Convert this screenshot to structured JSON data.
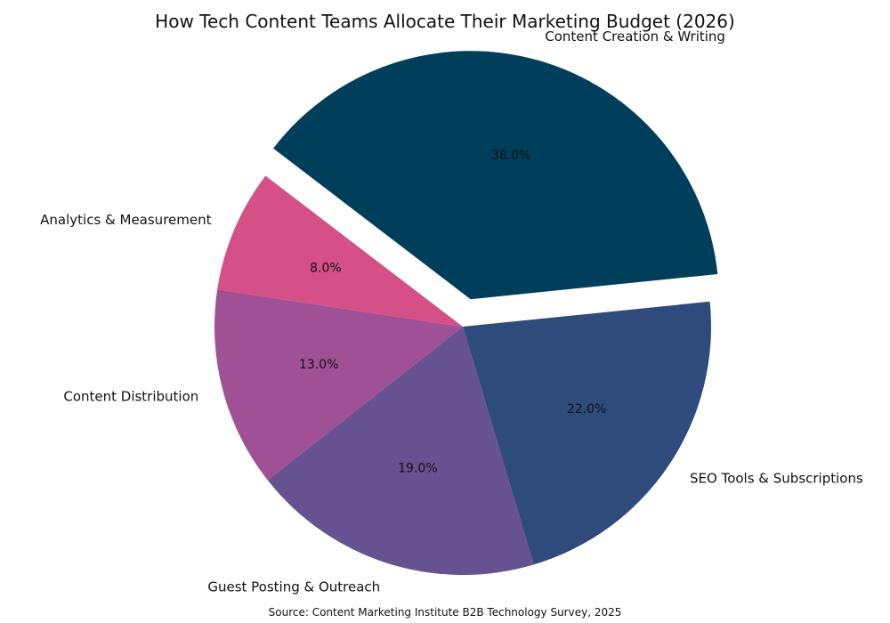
{
  "chart_data": {
    "type": "pie",
    "title": "How Tech Content Teams Allocate Their Marketing Budget (2026)",
    "source": "Source: Content Marketing Institute B2B Technology Survey, 2025",
    "slices": [
      {
        "label": "Content Creation & Writing",
        "value": 38.0,
        "pct_label": "38.0%",
        "color": "#003f5c",
        "exploded": true
      },
      {
        "label": "SEO Tools & Subscriptions",
        "value": 22.0,
        "pct_label": "22.0%",
        "color": "#2f4b7c",
        "exploded": false
      },
      {
        "label": "Guest Posting & Outreach",
        "value": 19.0,
        "pct_label": "19.0%",
        "color": "#665191",
        "exploded": false
      },
      {
        "label": "Content Distribution",
        "value": 13.0,
        "pct_label": "13.0%",
        "color": "#a05195",
        "exploded": false
      },
      {
        "label": "Analytics & Measurement",
        "value": 8.0,
        "pct_label": "8.0%",
        "color": "#d45087",
        "exploded": false
      }
    ],
    "start_angle_deg": 142.6,
    "direction": "clockwise"
  }
}
